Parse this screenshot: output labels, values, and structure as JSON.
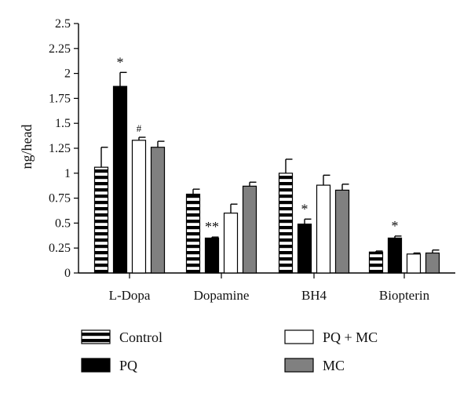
{
  "chart_data": {
    "type": "bar",
    "title": "",
    "xlabel": "",
    "ylabel": "ng/head",
    "ylim": [
      0,
      2.5
    ],
    "yticks": [
      "0",
      "0.25",
      "0.5",
      "0.75",
      "1",
      "1.25",
      "1.5",
      "1.75",
      "2",
      "2.25",
      "2.5"
    ],
    "categories": [
      "L-Dopa",
      "Dopamine",
      "BH4",
      "Biopterin"
    ],
    "series": [
      {
        "name": "Control",
        "fill": "stripes",
        "values": [
          1.06,
          0.79,
          1.0,
          0.21
        ],
        "errors": [
          0.2,
          0.05,
          0.14,
          0.01
        ],
        "annotations": [
          "",
          "",
          "",
          ""
        ]
      },
      {
        "name": "PQ",
        "fill": "#000000",
        "values": [
          1.87,
          0.35,
          0.49,
          0.35
        ],
        "errors": [
          0.14,
          0.01,
          0.05,
          0.02
        ],
        "annotations": [
          "*",
          "**",
          "*",
          "*"
        ]
      },
      {
        "name": "PQ + MC",
        "fill": "#ffffff",
        "values": [
          1.33,
          0.6,
          0.88,
          0.19
        ],
        "errors": [
          0.03,
          0.09,
          0.1,
          0.01
        ],
        "annotations": [
          "#",
          "",
          "",
          ""
        ]
      },
      {
        "name": "MC",
        "fill": "#808080",
        "values": [
          1.26,
          0.87,
          0.83,
          0.2
        ],
        "errors": [
          0.06,
          0.04,
          0.06,
          0.03
        ],
        "annotations": [
          "",
          "",
          "",
          ""
        ]
      }
    ],
    "legend": {
      "placement": "bottom",
      "columns": [
        [
          "Control",
          "PQ"
        ],
        [
          "PQ + MC",
          "MC"
        ]
      ]
    },
    "grid": false
  }
}
